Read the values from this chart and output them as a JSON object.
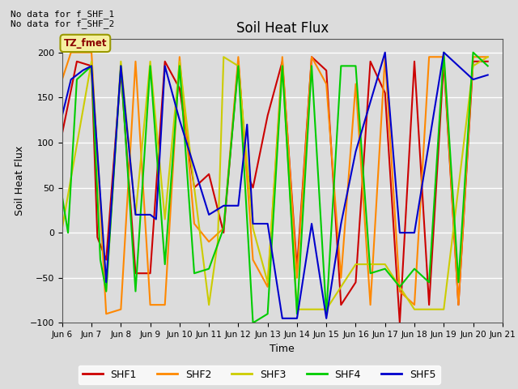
{
  "title": "Soil Heat Flux",
  "xlabel": "Time",
  "ylabel": "Soil Heat Flux",
  "ylim": [
    -100,
    215
  ],
  "yticks": [
    -100,
    -50,
    0,
    50,
    100,
    150,
    200
  ],
  "annotation_lines": [
    "No data for f_SHF_1",
    "No data for f_SHF_2"
  ],
  "legend_box_label": "TZ_fmet",
  "legend_box_color": "#f5f0a0",
  "legend_box_border": "#999900",
  "fig_bg_color": "#dcdcdc",
  "plot_bg_color": "#dcdcdc",
  "grid_color": "#ffffff",
  "series_colors": {
    "SHF1": "#cc0000",
    "SHF2": "#ff8800",
    "SHF3": "#cccc00",
    "SHF4": "#00cc00",
    "SHF5": "#0000cc"
  },
  "x_tick_labels": [
    "Jun 6",
    "Jun 7",
    "Jun 8",
    "Jun 9",
    "Jun 10",
    "Jun 11",
    "Jun 12",
    "Jun 13",
    "Jun 14",
    "Jun 15",
    "Jun 16",
    "Jun 17",
    "Jun 18",
    "Jun 19",
    "Jun 20",
    "Jun 21"
  ],
  "x_tick_positions": [
    6,
    7,
    8,
    9,
    10,
    11,
    12,
    13,
    14,
    15,
    16,
    17,
    18,
    19,
    20,
    21
  ],
  "SHF1_x": [
    6.0,
    6.5,
    7.0,
    7.2,
    7.5,
    8.0,
    8.5,
    9.0,
    9.5,
    10.0,
    10.5,
    11.0,
    11.5,
    12.0,
    12.3,
    12.5,
    13.0,
    13.5,
    14.0,
    14.5,
    15.0,
    15.5,
    16.0,
    16.5,
    17.0,
    17.5,
    18.0,
    18.5,
    19.0,
    19.5,
    20.0,
    20.5
  ],
  "SHF1_y": [
    110,
    190,
    185,
    -5,
    -30,
    180,
    -45,
    -45,
    190,
    160,
    50,
    65,
    0,
    190,
    65,
    50,
    130,
    190,
    -40,
    195,
    180,
    -80,
    -55,
    190,
    155,
    -100,
    190,
    -80,
    190,
    -80,
    190,
    190
  ],
  "SHF2_x": [
    6.0,
    6.3,
    7.0,
    7.5,
    8.0,
    8.5,
    9.0,
    9.5,
    10.0,
    10.5,
    11.0,
    11.5,
    12.0,
    12.5,
    13.0,
    13.5,
    14.0,
    14.5,
    15.0,
    15.5,
    16.0,
    16.5,
    17.0,
    17.5,
    18.0,
    18.5,
    19.0,
    19.5,
    20.0,
    20.5
  ],
  "SHF2_y": [
    170,
    200,
    200,
    -90,
    -85,
    190,
    -80,
    -80,
    195,
    10,
    -10,
    5,
    195,
    -30,
    -60,
    195,
    -50,
    195,
    165,
    -50,
    165,
    -80,
    195,
    -65,
    -80,
    195,
    195,
    -80,
    195,
    195
  ],
  "SHF3_x": [
    6.0,
    7.0,
    7.5,
    8.0,
    8.5,
    9.0,
    9.5,
    10.0,
    10.5,
    11.0,
    11.3,
    11.5,
    12.0,
    12.5,
    13.0,
    13.5,
    14.0,
    15.0,
    16.0,
    17.0,
    18.0,
    19.0,
    20.0,
    20.5
  ],
  "SHF3_y": [
    5,
    190,
    -65,
    190,
    20,
    190,
    15,
    190,
    50,
    -80,
    -10,
    195,
    185,
    5,
    -55,
    185,
    -85,
    -85,
    -35,
    -35,
    -85,
    -85,
    185,
    195
  ],
  "SHF4_x": [
    6.0,
    6.2,
    6.5,
    7.0,
    7.3,
    7.5,
    8.0,
    8.5,
    9.0,
    9.5,
    10.0,
    10.5,
    11.0,
    11.5,
    12.0,
    12.5,
    13.0,
    13.5,
    14.0,
    14.5,
    15.0,
    15.5,
    16.0,
    16.5,
    17.0,
    17.5,
    18.0,
    18.5,
    19.0,
    19.5,
    20.0,
    20.5
  ],
  "SHF4_y": [
    40,
    0,
    170,
    185,
    -30,
    -65,
    185,
    -65,
    185,
    -35,
    185,
    -45,
    -40,
    5,
    185,
    -100,
    -90,
    185,
    -90,
    185,
    -90,
    185,
    185,
    -45,
    -40,
    -60,
    -40,
    -55,
    200,
    -55,
    200,
    185
  ],
  "SHF5_x": [
    6.0,
    6.3,
    6.7,
    7.0,
    7.5,
    8.0,
    8.5,
    9.0,
    9.2,
    9.5,
    10.0,
    11.0,
    11.5,
    12.0,
    12.3,
    12.5,
    13.0,
    13.5,
    14.0,
    14.5,
    15.0,
    15.5,
    16.0,
    17.0,
    17.5,
    18.0,
    19.0,
    20.0,
    20.5
  ],
  "SHF5_y": [
    130,
    170,
    180,
    185,
    -55,
    185,
    20,
    20,
    15,
    185,
    125,
    20,
    30,
    30,
    120,
    10,
    10,
    -95,
    -95,
    10,
    -95,
    10,
    90,
    200,
    0,
    0,
    200,
    170,
    175
  ]
}
